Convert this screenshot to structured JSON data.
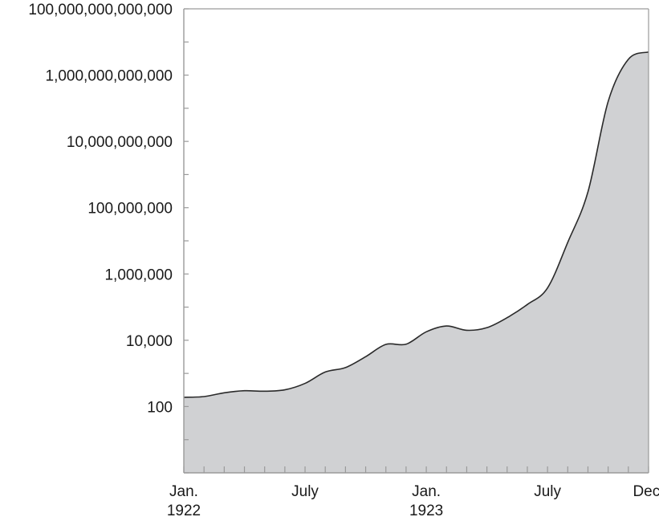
{
  "chart_data": {
    "type": "area",
    "title": "",
    "xlabel": "",
    "ylabel": "",
    "y_scale": "log",
    "ylim": [
      1,
      100000000000000
    ],
    "xlim": [
      "1922-01",
      "1923-12"
    ],
    "grid": false,
    "y_tick_labels": [
      {
        "value": 100,
        "label": "100"
      },
      {
        "value": 10000,
        "label": "10,000"
      },
      {
        "value": 1000000,
        "label": "1,000,000"
      },
      {
        "value": 100000000,
        "label": "100,000,000"
      },
      {
        "value": 10000000000,
        "label": "10,000,000,000"
      },
      {
        "value": 1000000000000,
        "label": "1,000,000,000,000"
      },
      {
        "value": 100000000000000,
        "label": "100,000,000,000,000"
      }
    ],
    "x_tick_labels": [
      {
        "x": "1922-01",
        "line1": "Jan.",
        "line2": "1922"
      },
      {
        "x": "1922-07",
        "line1": "July",
        "line2": ""
      },
      {
        "x": "1923-01",
        "line1": "Jan.",
        "line2": "1923"
      },
      {
        "x": "1923-07",
        "line1": "July",
        "line2": ""
      },
      {
        "x": "1923-12",
        "line1": "Dec.",
        "line2": ""
      }
    ],
    "x_minor_ticks": [
      "1922-01",
      "1922-02",
      "1922-03",
      "1922-04",
      "1922-05",
      "1922-06",
      "1922-07",
      "1922-08",
      "1922-09",
      "1922-10",
      "1922-11",
      "1922-12",
      "1923-01",
      "1923-02",
      "1923-03",
      "1923-04",
      "1923-05",
      "1923-06",
      "1923-07",
      "1923-08",
      "1923-09",
      "1923-10",
      "1923-11",
      "1923-12"
    ],
    "series": [
      {
        "fill_color": "#d0d1d3",
        "line_color": "#2a2a2a",
        "points": [
          {
            "x": "1922-01",
            "y": 190
          },
          {
            "x": "1922-02",
            "y": 200
          },
          {
            "x": "1922-03",
            "y": 260
          },
          {
            "x": "1922-04",
            "y": 300
          },
          {
            "x": "1922-05",
            "y": 290
          },
          {
            "x": "1922-06",
            "y": 320
          },
          {
            "x": "1922-07",
            "y": 500
          },
          {
            "x": "1922-08",
            "y": 1100
          },
          {
            "x": "1922-09",
            "y": 1500
          },
          {
            "x": "1922-10",
            "y": 3200
          },
          {
            "x": "1922-11",
            "y": 7500
          },
          {
            "x": "1922-12",
            "y": 7600
          },
          {
            "x": "1923-01",
            "y": 18000
          },
          {
            "x": "1923-02",
            "y": 27000
          },
          {
            "x": "1923-03",
            "y": 20000
          },
          {
            "x": "1923-04",
            "y": 24000
          },
          {
            "x": "1923-05",
            "y": 48000
          },
          {
            "x": "1923-06",
            "y": 120000
          },
          {
            "x": "1923-07",
            "y": 380000
          },
          {
            "x": "1923-08",
            "y": 9000000
          },
          {
            "x": "1923-09",
            "y": 300000000
          },
          {
            "x": "1923-10",
            "y": 160000000000
          },
          {
            "x": "1923-11",
            "y": 3000000000000
          },
          {
            "x": "1923-12",
            "y": 5000000000000
          }
        ]
      }
    ]
  }
}
